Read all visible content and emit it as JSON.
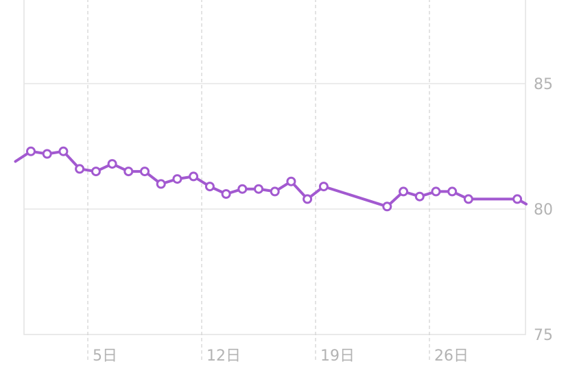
{
  "chart_data": {
    "type": "line",
    "xlabel": "",
    "ylabel": "",
    "xlim": [
      1,
      31
    ],
    "ylim": [
      75,
      88
    ],
    "grid": true,
    "x_ticks": [
      {
        "x": 5,
        "label": "5日"
      },
      {
        "x": 12,
        "label": "12日"
      },
      {
        "x": 19,
        "label": "19日"
      },
      {
        "x": 26,
        "label": "26日"
      }
    ],
    "y_ticks": [
      {
        "y": 85,
        "label": "85"
      },
      {
        "y": 80,
        "label": "80"
      },
      {
        "y": 75,
        "label": "75"
      }
    ],
    "series": [
      {
        "color": "#a259d0",
        "points": [
          {
            "x": 0.55,
            "y": 81.9
          },
          {
            "x": 1.5,
            "y": 82.3
          },
          {
            "x": 2.5,
            "y": 82.2
          },
          {
            "x": 3.5,
            "y": 82.3
          },
          {
            "x": 4.5,
            "y": 81.6
          },
          {
            "x": 5.5,
            "y": 81.5
          },
          {
            "x": 6.5,
            "y": 81.8
          },
          {
            "x": 7.5,
            "y": 81.5
          },
          {
            "x": 8.5,
            "y": 81.5
          },
          {
            "x": 9.5,
            "y": 81.0
          },
          {
            "x": 10.5,
            "y": 81.2
          },
          {
            "x": 11.5,
            "y": 81.3
          },
          {
            "x": 12.5,
            "y": 80.9
          },
          {
            "x": 13.5,
            "y": 80.6
          },
          {
            "x": 14.5,
            "y": 80.8
          },
          {
            "x": 15.5,
            "y": 80.8
          },
          {
            "x": 16.5,
            "y": 80.7
          },
          {
            "x": 17.5,
            "y": 81.1
          },
          {
            "x": 18.5,
            "y": 80.4
          },
          {
            "x": 19.5,
            "y": 80.9
          },
          {
            "x": 23.4,
            "y": 80.1
          },
          {
            "x": 24.4,
            "y": 80.7
          },
          {
            "x": 25.4,
            "y": 80.5
          },
          {
            "x": 26.4,
            "y": 80.7
          },
          {
            "x": 27.4,
            "y": 80.7
          },
          {
            "x": 28.4,
            "y": 80.4
          },
          {
            "x": 31.4,
            "y": 80.4
          },
          {
            "x": 31.95,
            "y": 80.2
          }
        ]
      }
    ]
  }
}
